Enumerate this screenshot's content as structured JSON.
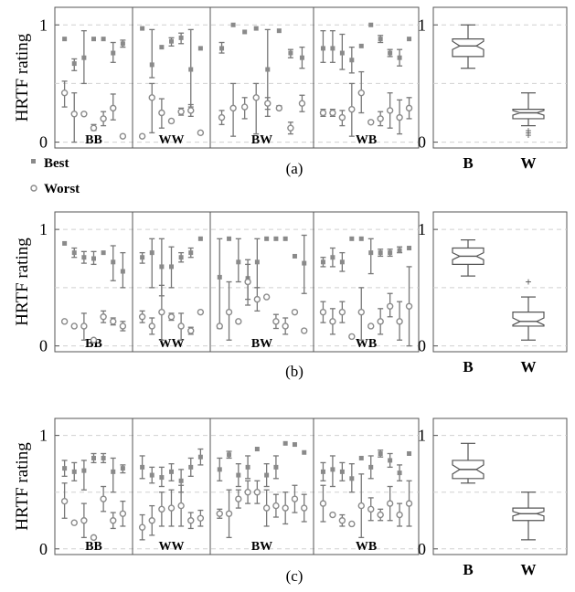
{
  "figure": {
    "captions": [
      "(a)",
      "(b)",
      "(c)"
    ],
    "legend": {
      "best_label": "Best",
      "worst_label": "Worst"
    }
  },
  "chart_data": [
    {
      "type": "scatter",
      "ylabel": "HRTF rating",
      "ylim": [
        -0.05,
        1.15
      ],
      "yticks": [
        0,
        1
      ],
      "groups": [
        "BB",
        "WW",
        "BW",
        "WB"
      ],
      "best": {
        "BB": [
          [
            0.88,
            0.88,
            0.88
          ],
          [
            0.67,
            0.61,
            0.71
          ],
          [
            0.72,
            0.5,
            0.95
          ],
          [
            0.88,
            0.88,
            0.88
          ],
          [
            0.88,
            0.88,
            0.88
          ],
          [
            0.76,
            0.68,
            0.85
          ],
          [
            0.84,
            0.81,
            0.87
          ]
        ],
        "WW": [
          [
            0.97,
            0.97,
            0.97
          ],
          [
            0.66,
            0.55,
            0.96
          ],
          [
            0.81,
            0.81,
            0.81
          ],
          [
            0.86,
            0.82,
            0.89
          ],
          [
            0.89,
            0.84,
            0.93
          ],
          [
            0.62,
            0.3,
            0.96
          ],
          [
            0.8,
            0.8,
            0.8
          ]
        ],
        "BW": [
          [
            0.8,
            0.76,
            0.85
          ],
          [
            1.0,
            1.0,
            1.0
          ],
          [
            0.94,
            0.94,
            0.94
          ],
          [
            0.97,
            0.97,
            0.97
          ],
          [
            0.62,
            0.22,
            0.96
          ],
          [
            0.95,
            0.95,
            0.95
          ],
          [
            0.76,
            0.72,
            0.79
          ],
          [
            0.72,
            0.63,
            0.81
          ]
        ],
        "WB": [
          [
            0.8,
            0.68,
            0.95
          ],
          [
            0.8,
            0.68,
            0.95
          ],
          [
            0.76,
            0.62,
            0.92
          ],
          [
            0.7,
            0.59,
            0.81
          ],
          [
            0.82,
            0.82,
            0.82
          ],
          [
            1.0,
            1.0,
            1.0
          ],
          [
            0.88,
            0.85,
            0.91
          ],
          [
            0.76,
            0.73,
            0.79
          ],
          [
            0.72,
            0.65,
            0.79
          ],
          [
            0.88,
            0.88,
            0.88
          ]
        ]
      },
      "worst": {
        "BB": [
          [
            0.42,
            0.3,
            0.52
          ],
          [
            0.24,
            0.0,
            0.42
          ],
          [
            0.24,
            0.24,
            0.24
          ],
          [
            0.12,
            0.1,
            0.15
          ],
          [
            0.2,
            0.14,
            0.26
          ],
          [
            0.29,
            0.19,
            0.41
          ],
          [
            0.05,
            0.05,
            0.05
          ]
        ],
        "WW": [
          [
            0.05,
            0.05,
            0.05
          ],
          [
            0.38,
            0.08,
            0.5
          ],
          [
            0.25,
            0.12,
            0.37
          ],
          [
            0.18,
            0.18,
            0.18
          ],
          [
            0.26,
            0.23,
            0.29
          ],
          [
            0.27,
            0.22,
            0.32
          ],
          [
            0.08,
            0.08,
            0.08
          ]
        ],
        "BW": [
          [
            0.21,
            0.15,
            0.27
          ],
          [
            0.29,
            0.05,
            0.5
          ],
          [
            0.3,
            0.2,
            0.38
          ],
          [
            0.38,
            0.07,
            0.5
          ],
          [
            0.33,
            0.28,
            0.38
          ],
          [
            0.29,
            0.28,
            0.31
          ],
          [
            0.12,
            0.07,
            0.17
          ],
          [
            0.33,
            0.26,
            0.4
          ],
          [
            0.33,
            0.05,
            0.6
          ],
          [
            0.22,
            0.15,
            0.28
          ]
        ],
        "WB": [
          [
            0.25,
            0.22,
            0.28
          ],
          [
            0.25,
            0.22,
            0.28
          ],
          [
            0.21,
            0.14,
            0.27
          ],
          [
            0.28,
            0.05,
            0.5
          ],
          [
            0.42,
            0.25,
            0.6
          ],
          [
            0.17,
            0.17,
            0.17
          ],
          [
            0.2,
            0.14,
            0.26
          ],
          [
            0.27,
            0.12,
            0.42
          ],
          [
            0.21,
            0.07,
            0.36
          ],
          [
            0.29,
            0.2,
            0.38
          ]
        ]
      }
    },
    {
      "type": "box",
      "ylim": [
        -0.05,
        1.15
      ],
      "yticks": [
        0,
        1
      ],
      "categories": [
        "B",
        "W"
      ],
      "boxes": [
        {
          "min": 0.63,
          "q1": 0.73,
          "median": 0.82,
          "q3": 0.88,
          "max": 1.0,
          "notch_lo": 0.79,
          "notch_hi": 0.86,
          "outliers": []
        },
        {
          "min": 0.14,
          "q1": 0.2,
          "median": 0.25,
          "q3": 0.28,
          "max": 0.42,
          "notch_lo": 0.23,
          "notch_hi": 0.27,
          "outliers": [
            0.06,
            0.08,
            0.1
          ]
        }
      ]
    },
    {
      "type": "scatter",
      "ylabel": "HRTF rating",
      "ylim": [
        -0.05,
        1.15
      ],
      "yticks": [
        0,
        1
      ],
      "groups": [
        "BB",
        "WW",
        "BW",
        "WB"
      ],
      "best": {
        "BB": [
          [
            0.88,
            0.88,
            0.88
          ],
          [
            0.8,
            0.76,
            0.84
          ],
          [
            0.76,
            0.71,
            0.81
          ],
          [
            0.75,
            0.7,
            0.81
          ],
          [
            0.8,
            0.8,
            0.8
          ],
          [
            0.72,
            0.56,
            0.86
          ],
          [
            0.64,
            0.5,
            0.8
          ]
        ],
        "WW": [
          [
            0.76,
            0.71,
            0.8
          ],
          [
            0.8,
            0.5,
            0.92
          ],
          [
            0.68,
            0.43,
            0.92
          ],
          [
            0.68,
            0.5,
            0.85
          ],
          [
            0.76,
            0.72,
            0.8
          ],
          [
            0.8,
            0.76,
            0.84
          ],
          [
            0.92,
            0.92,
            0.92
          ]
        ],
        "BW": [
          [
            0.59,
            0.15,
            0.92
          ],
          [
            0.92,
            0.92,
            0.92
          ],
          [
            0.72,
            0.55,
            0.92
          ],
          [
            0.58,
            0.4,
            0.74
          ],
          [
            0.72,
            0.5,
            0.92
          ],
          [
            0.92,
            0.92,
            0.92
          ],
          [
            0.92,
            0.92,
            0.92
          ],
          [
            0.92,
            0.92,
            0.92
          ],
          [
            0.77,
            0.77,
            0.77
          ],
          [
            0.71,
            0.45,
            0.95
          ]
        ],
        "WB": [
          [
            0.72,
            0.68,
            0.76
          ],
          [
            0.76,
            0.68,
            0.84
          ],
          [
            0.72,
            0.64,
            0.8
          ],
          [
            0.92,
            0.92,
            0.92
          ],
          [
            0.92,
            0.92,
            0.92
          ],
          [
            0.8,
            0.62,
            0.92
          ],
          [
            0.8,
            0.77,
            0.83
          ],
          [
            0.8,
            0.77,
            0.83
          ],
          [
            0.82,
            0.8,
            0.85
          ],
          [
            0.84,
            0.84,
            0.84
          ]
        ]
      },
      "worst": {
        "BB": [
          [
            0.21,
            0.21,
            0.21
          ],
          [
            0.17,
            0.17,
            0.17
          ],
          [
            0.17,
            0.05,
            0.28
          ],
          [
            0.05,
            0.05,
            0.05
          ],
          [
            0.25,
            0.2,
            0.3
          ],
          [
            0.21,
            0.18,
            0.24
          ],
          [
            0.17,
            0.13,
            0.21
          ]
        ],
        "WW": [
          [
            0.25,
            0.2,
            0.3
          ],
          [
            0.17,
            0.1,
            0.24
          ],
          [
            0.29,
            0.05,
            0.52
          ],
          [
            0.25,
            0.22,
            0.28
          ],
          [
            0.17,
            0.05,
            0.28
          ],
          [
            0.13,
            0.1,
            0.16
          ],
          [
            0.29,
            0.29,
            0.29
          ]
        ],
        "BW": [
          [
            0.17,
            0.17,
            0.17
          ],
          [
            0.29,
            0.05,
            0.55
          ],
          [
            0.21,
            0.21,
            0.21
          ],
          [
            0.55,
            0.35,
            0.7
          ],
          [
            0.4,
            0.3,
            0.5
          ],
          [
            0.42,
            0.42,
            0.42
          ],
          [
            0.21,
            0.15,
            0.27
          ],
          [
            0.17,
            0.1,
            0.24
          ],
          [
            0.29,
            0.29,
            0.29
          ],
          [
            0.13,
            0.13,
            0.13
          ]
        ],
        "WB": [
          [
            0.29,
            0.2,
            0.38
          ],
          [
            0.21,
            0.1,
            0.32
          ],
          [
            0.29,
            0.2,
            0.38
          ],
          [
            0.08,
            0.08,
            0.08
          ],
          [
            0.29,
            0.05,
            0.5
          ],
          [
            0.17,
            0.17,
            0.17
          ],
          [
            0.21,
            0.1,
            0.32
          ],
          [
            0.34,
            0.25,
            0.45
          ],
          [
            0.21,
            0.05,
            0.38
          ],
          [
            0.34,
            0.0,
            0.68
          ]
        ]
      }
    },
    {
      "type": "box",
      "ylim": [
        -0.05,
        1.15
      ],
      "yticks": [
        0,
        1
      ],
      "categories": [
        "B",
        "W"
      ],
      "boxes": [
        {
          "min": 0.6,
          "q1": 0.7,
          "median": 0.77,
          "q3": 0.84,
          "max": 0.91,
          "notch_lo": 0.74,
          "notch_hi": 0.8,
          "outliers": []
        },
        {
          "min": 0.05,
          "q1": 0.17,
          "median": 0.21,
          "q3": 0.29,
          "max": 0.42,
          "notch_lo": 0.18,
          "notch_hi": 0.24,
          "outliers": [
            0.55
          ]
        }
      ]
    },
    {
      "type": "scatter",
      "ylabel": "HRTF rating",
      "ylim": [
        -0.05,
        1.15
      ],
      "yticks": [
        0,
        1
      ],
      "groups": [
        "BB",
        "WW",
        "BW",
        "WB"
      ],
      "best": {
        "BB": [
          [
            0.71,
            0.64,
            0.78
          ],
          [
            0.68,
            0.6,
            0.76
          ],
          [
            0.69,
            0.52,
            0.78
          ],
          [
            0.8,
            0.76,
            0.84
          ],
          [
            0.8,
            0.76,
            0.84
          ],
          [
            0.68,
            0.5,
            0.8
          ],
          [
            0.71,
            0.67,
            0.74
          ]
        ],
        "WW": [
          [
            0.72,
            0.62,
            0.82
          ],
          [
            0.65,
            0.58,
            0.72
          ],
          [
            0.63,
            0.55,
            0.72
          ],
          [
            0.68,
            0.6,
            0.75
          ],
          [
            0.6,
            0.5,
            0.7
          ],
          [
            0.72,
            0.64,
            0.8
          ],
          [
            0.81,
            0.74,
            0.88
          ]
        ],
        "BW": [
          [
            0.7,
            0.6,
            0.8
          ],
          [
            0.83,
            0.8,
            0.86
          ],
          [
            0.65,
            0.55,
            0.75
          ],
          [
            0.72,
            0.62,
            0.82
          ],
          [
            0.88,
            0.88,
            0.88
          ],
          [
            0.65,
            0.55,
            0.75
          ],
          [
            0.72,
            0.62,
            0.82
          ],
          [
            0.93,
            0.93,
            0.93
          ],
          [
            0.92,
            0.92,
            0.92
          ],
          [
            0.85,
            0.85,
            0.85
          ]
        ],
        "WB": [
          [
            0.68,
            0.6,
            0.76
          ],
          [
            0.7,
            0.55,
            0.82
          ],
          [
            0.68,
            0.6,
            0.76
          ],
          [
            0.62,
            0.5,
            0.75
          ],
          [
            0.8,
            0.8,
            0.8
          ],
          [
            0.72,
            0.62,
            0.82
          ],
          [
            0.84,
            0.81,
            0.87
          ],
          [
            0.78,
            0.72,
            0.84
          ],
          [
            0.67,
            0.6,
            0.74
          ],
          [
            0.84,
            0.84,
            0.84
          ]
        ]
      },
      "worst": {
        "BB": [
          [
            0.42,
            0.27,
            0.58
          ],
          [
            0.23,
            0.23,
            0.23
          ],
          [
            0.25,
            0.1,
            0.4
          ],
          [
            0.1,
            0.1,
            0.1
          ],
          [
            0.44,
            0.33,
            0.55
          ],
          [
            0.25,
            0.18,
            0.32
          ],
          [
            0.31,
            0.2,
            0.42
          ]
        ],
        "WW": [
          [
            0.19,
            0.08,
            0.3
          ],
          [
            0.25,
            0.12,
            0.38
          ],
          [
            0.35,
            0.2,
            0.5
          ],
          [
            0.36,
            0.2,
            0.52
          ],
          [
            0.38,
            0.2,
            0.56
          ],
          [
            0.25,
            0.18,
            0.32
          ],
          [
            0.27,
            0.2,
            0.34
          ]
        ],
        "BW": [
          [
            0.31,
            0.27,
            0.35
          ],
          [
            0.31,
            0.1,
            0.52
          ],
          [
            0.44,
            0.36,
            0.52
          ],
          [
            0.5,
            0.4,
            0.6
          ],
          [
            0.5,
            0.4,
            0.6
          ],
          [
            0.36,
            0.2,
            0.52
          ],
          [
            0.38,
            0.28,
            0.48
          ],
          [
            0.36,
            0.22,
            0.5
          ],
          [
            0.44,
            0.32,
            0.56
          ],
          [
            0.36,
            0.24,
            0.48
          ]
        ],
        "WB": [
          [
            0.4,
            0.24,
            0.56
          ],
          [
            0.3,
            0.3,
            0.3
          ],
          [
            0.25,
            0.2,
            0.3
          ],
          [
            0.22,
            0.22,
            0.22
          ],
          [
            0.38,
            0.1,
            0.66
          ],
          [
            0.35,
            0.25,
            0.45
          ],
          [
            0.3,
            0.25,
            0.35
          ],
          [
            0.4,
            0.25,
            0.55
          ],
          [
            0.3,
            0.2,
            0.4
          ],
          [
            0.4,
            0.2,
            0.6
          ]
        ]
      }
    },
    {
      "type": "box",
      "ylim": [
        -0.05,
        1.15
      ],
      "yticks": [
        0,
        1
      ],
      "categories": [
        "B",
        "W"
      ],
      "boxes": [
        {
          "min": 0.58,
          "q1": 0.62,
          "median": 0.7,
          "q3": 0.78,
          "max": 0.93,
          "notch_lo": 0.66,
          "notch_hi": 0.74,
          "outliers": []
        },
        {
          "min": 0.08,
          "q1": 0.25,
          "median": 0.31,
          "q3": 0.36,
          "max": 0.5,
          "notch_lo": 0.29,
          "notch_hi": 0.33,
          "outliers": []
        }
      ]
    }
  ]
}
